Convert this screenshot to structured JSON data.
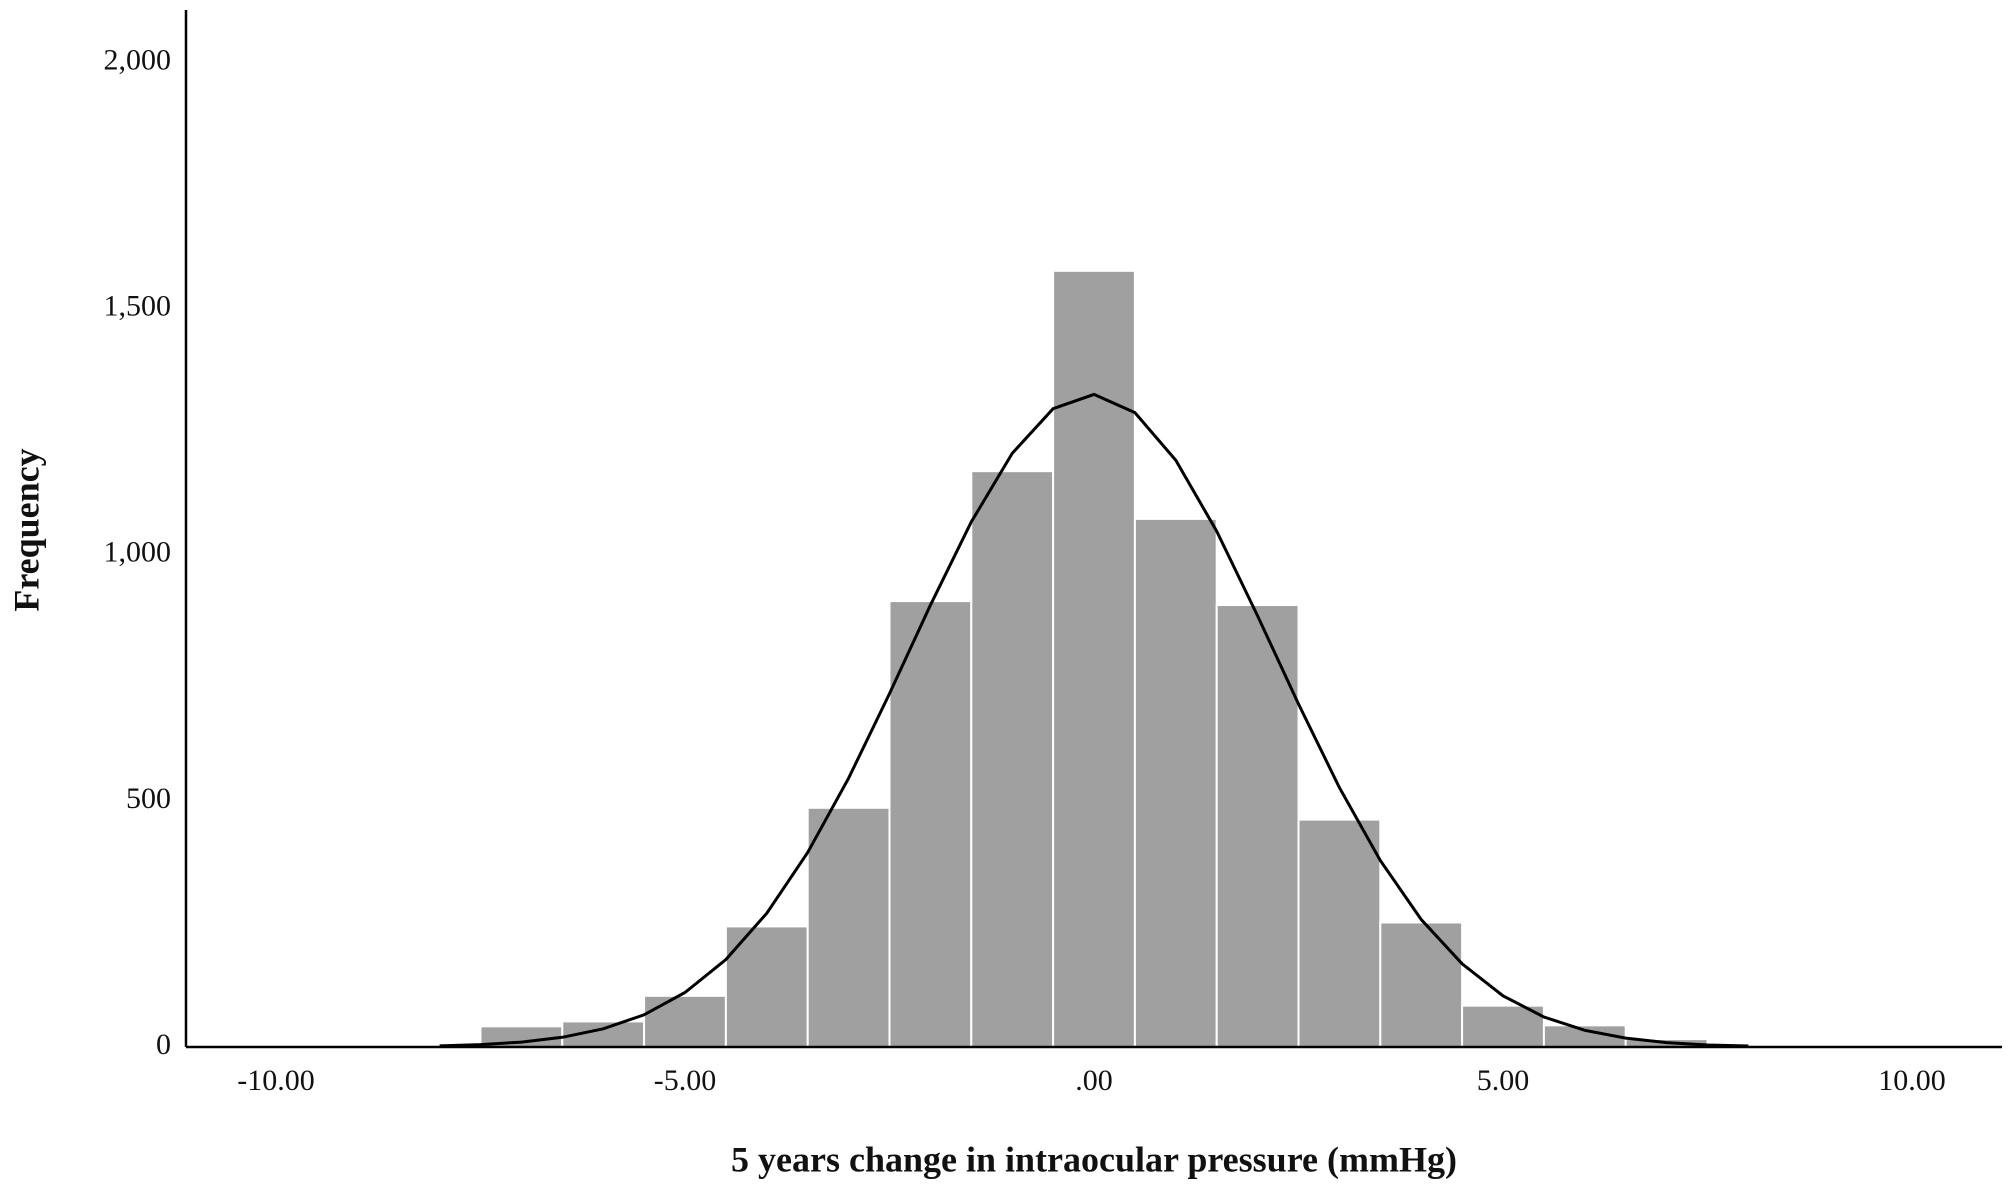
{
  "chart_data": {
    "type": "histogram",
    "x_label": "5 years change in intraocular pressure (mmHg)",
    "y_label": "Frequency",
    "bins": [
      -7.5,
      -6.5,
      -5.5,
      -4.5,
      -3.5,
      -2.5,
      -1.5,
      -0.5,
      0.5,
      1.5,
      2.5,
      3.5,
      4.5,
      5.5,
      6.5,
      7.5
    ],
    "values": [
      42,
      52,
      104,
      245,
      486,
      906,
      1170,
      1577,
      1073,
      898,
      462,
      253,
      84,
      44,
      16
    ],
    "color": "#a0a0a0",
    "curve": {
      "color": "#000000",
      "x": [
        -8,
        -7.5,
        -7,
        -6.5,
        -6,
        -5.5,
        -5,
        -4.5,
        -4,
        -3.5,
        -3,
        -2.5,
        -2,
        -1.5,
        -1,
        -0.5,
        0,
        0.5,
        1,
        1.5,
        2,
        2.5,
        3,
        3.5,
        4,
        4.5,
        5,
        5.5,
        6,
        6.5,
        7,
        7.5,
        8
      ],
      "y": [
        2.2,
        4.9,
        10,
        19.7,
        36.9,
        65.5,
        110.7,
        177.8,
        271.8,
        395.2,
        546.2,
        718,
        897.6,
        1067,
        1206,
        1297,
        1326,
        1289,
        1192,
        1048,
        876,
        697,
        527,
        379,
        259,
        169,
        104,
        61,
        34,
        18,
        9,
        4,
        2
      ]
    },
    "xlim": [
      -11.1,
      11.1
    ],
    "ylim": [
      0,
      2107
    ],
    "xticks": [
      {
        "value": -10,
        "label": "-10.00"
      },
      {
        "value": -5,
        "label": "-5.00"
      },
      {
        "value": 0,
        "label": ".00"
      },
      {
        "value": 5,
        "label": "5.00"
      },
      {
        "value": 10,
        "label": "10.00"
      }
    ],
    "yticks": [
      0,
      500,
      {
        "value": 1000,
        "label": "1,000"
      },
      {
        "value": 1500,
        "label": "1,500"
      },
      {
        "value": 2000,
        "label": "2,000"
      }
    ],
    "grid": false
  }
}
